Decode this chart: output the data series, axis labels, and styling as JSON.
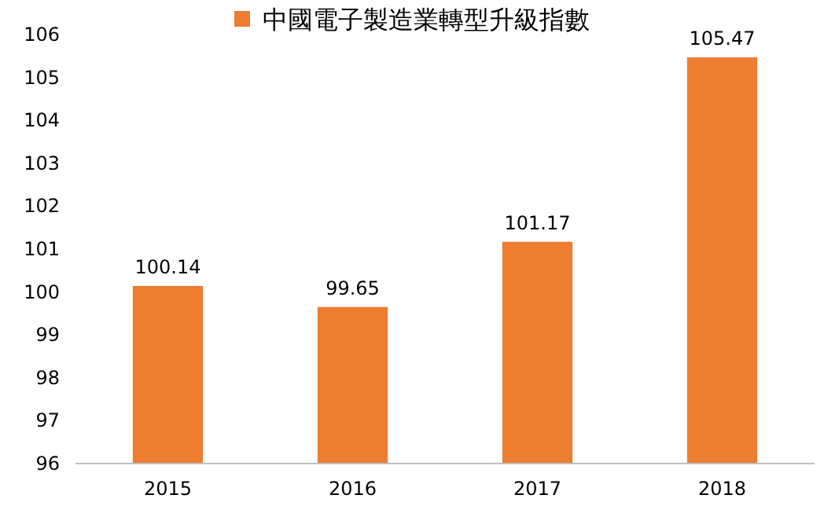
{
  "chart_data": {
    "type": "bar",
    "categories": [
      "2015",
      "2016",
      "2017",
      "2018"
    ],
    "series": [
      {
        "name": "中國電子製造業轉型升級指數",
        "color": "#ed7d31",
        "values": [
          100.14,
          99.65,
          101.17,
          105.47
        ]
      }
    ],
    "ylim": [
      96,
      106
    ],
    "yticks": [
      96,
      97,
      98,
      99,
      100,
      101,
      102,
      103,
      104,
      105,
      106
    ],
    "data_labels": true,
    "legend": "top",
    "grid": false
  }
}
